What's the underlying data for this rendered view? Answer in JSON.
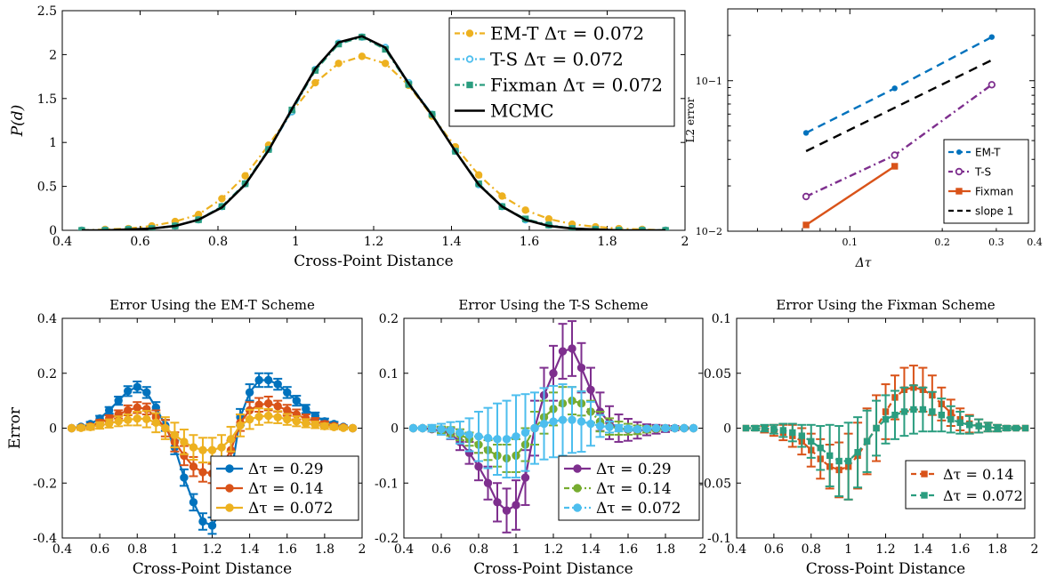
{
  "chart_data": [
    {
      "id": "pdf",
      "type": "line",
      "title": "",
      "xlabel": "Cross-Point Distance",
      "ylabel": "P(d)",
      "xlim": [
        0.4,
        2
      ],
      "ylim": [
        0,
        2.5
      ],
      "xticks": [
        "0.4",
        "0.6",
        "0.8",
        "1",
        "1.2",
        "1.4",
        "1.6",
        "1.8",
        "2"
      ],
      "yticks": [
        "0",
        "0.5",
        "1",
        "1.5",
        "2",
        "2.5"
      ],
      "legend_position": "top-right",
      "x": [
        0.45,
        0.51,
        0.57,
        0.63,
        0.69,
        0.75,
        0.81,
        0.87,
        0.93,
        0.99,
        1.05,
        1.11,
        1.17,
        1.23,
        1.29,
        1.35,
        1.41,
        1.47,
        1.53,
        1.59,
        1.65,
        1.71,
        1.77,
        1.83,
        1.89,
        1.95
      ],
      "series": [
        {
          "name": "EM-T Δτ = 0.072",
          "color": "#EDB120",
          "marker": "circle",
          "dash": "8,4,2,4",
          "values": [
            0.0,
            0.01,
            0.02,
            0.05,
            0.1,
            0.18,
            0.36,
            0.62,
            0.97,
            1.35,
            1.68,
            1.9,
            1.98,
            1.9,
            1.65,
            1.3,
            0.95,
            0.63,
            0.39,
            0.23,
            0.13,
            0.07,
            0.04,
            0.02,
            0.01,
            0.0
          ]
        },
        {
          "name": "T-S Δτ = 0.072",
          "color": "#4DBEEE",
          "marker": "circle-open",
          "dash": "8,4,2,4",
          "values": [
            0.0,
            0.0,
            0.01,
            0.02,
            0.05,
            0.12,
            0.27,
            0.53,
            0.92,
            1.35,
            1.83,
            2.13,
            2.2,
            2.08,
            1.68,
            1.32,
            0.9,
            0.52,
            0.27,
            0.12,
            0.06,
            0.02,
            0.01,
            0.0,
            0.0,
            0.0
          ]
        },
        {
          "name": "Fixman Δτ = 0.072",
          "color": "#2A9D7F",
          "marker": "square",
          "dash": "8,4,2,4",
          "values": [
            0.0,
            0.0,
            0.01,
            0.02,
            0.05,
            0.12,
            0.27,
            0.53,
            0.92,
            1.37,
            1.82,
            2.12,
            2.2,
            2.06,
            1.66,
            1.32,
            0.9,
            0.53,
            0.27,
            0.13,
            0.06,
            0.02,
            0.01,
            0.0,
            0.0,
            0.0
          ]
        },
        {
          "name": "MCMC",
          "color": "#000000",
          "marker": "none",
          "dash": "none",
          "values": [
            0.0,
            0.0,
            0.01,
            0.02,
            0.05,
            0.12,
            0.26,
            0.52,
            0.91,
            1.38,
            1.84,
            2.14,
            2.21,
            2.08,
            1.67,
            1.31,
            0.9,
            0.52,
            0.27,
            0.12,
            0.05,
            0.02,
            0.01,
            0.0,
            0.0,
            0.0
          ]
        }
      ]
    },
    {
      "id": "conv",
      "type": "line",
      "title": "",
      "xlabel": "Δτ",
      "ylabel": "L2 error",
      "scale": "log-log",
      "xlim": [
        0.04,
        0.4
      ],
      "ylim": [
        0.01,
        0.3
      ],
      "xticks": [
        "0.1",
        "0.2",
        "0.3",
        "0.4"
      ],
      "yticks": [
        "10−2",
        "10−1"
      ],
      "legend_position": "bottom-right",
      "series": [
        {
          "name": "EM-T",
          "color": "#0072BD",
          "marker": "dot",
          "dash": "9,6",
          "x": [
            0.072,
            0.14,
            0.29
          ],
          "values": [
            0.045,
            0.089,
            0.195
          ]
        },
        {
          "name": "T-S",
          "color": "#7E2F8E",
          "marker": "circle-open",
          "dash": "8,4,2,4",
          "x": [
            0.072,
            0.14,
            0.29
          ],
          "values": [
            0.017,
            0.032,
            0.094
          ]
        },
        {
          "name": "Fixman",
          "color": "#D95319",
          "marker": "square",
          "dash": "none",
          "x": [
            0.072,
            0.14
          ],
          "values": [
            0.011,
            0.027
          ]
        },
        {
          "name": "slope 1",
          "color": "#000000",
          "marker": "none",
          "dash": "10,7",
          "x": [
            0.072,
            0.29
          ],
          "values": [
            0.034,
            0.137
          ]
        }
      ]
    },
    {
      "id": "emt",
      "type": "line",
      "title": "Error Using the EM-T Scheme",
      "xlabel": "Cross-Point Distance",
      "ylabel": "Error",
      "xlim": [
        0.4,
        2
      ],
      "ylim": [
        -0.4,
        0.4
      ],
      "xticks": [
        "0.4",
        "0.6",
        "0.8",
        "1",
        "1.2",
        "1.4",
        "1.6",
        "1.8",
        "2"
      ],
      "yticks": [
        "-0.4",
        "-0.2",
        "0",
        "0.2",
        "0.4"
      ],
      "legend_position": "bottom-right",
      "x": [
        0.45,
        0.5,
        0.55,
        0.6,
        0.65,
        0.7,
        0.75,
        0.8,
        0.85,
        0.9,
        0.95,
        1.0,
        1.05,
        1.1,
        1.15,
        1.2,
        1.25,
        1.3,
        1.35,
        1.4,
        1.45,
        1.5,
        1.55,
        1.6,
        1.65,
        1.7,
        1.75,
        1.8,
        1.85,
        1.9,
        1.95
      ],
      "series": [
        {
          "name": "Δτ = 0.29",
          "color": "#0072BD",
          "marker": "dot",
          "dash": "none",
          "values": [
            0.0,
            0.005,
            0.015,
            0.035,
            0.065,
            0.1,
            0.135,
            0.15,
            0.13,
            0.075,
            0.01,
            -0.07,
            -0.18,
            -0.27,
            -0.34,
            -0.355,
            -0.3,
            -0.17,
            0.04,
            0.13,
            0.175,
            0.175,
            0.16,
            0.13,
            0.1,
            0.07,
            0.045,
            0.025,
            0.015,
            0.005,
            0.0
          ],
          "err": [
            0,
            0.005,
            0.008,
            0.01,
            0.012,
            0.015,
            0.018,
            0.02,
            0.02,
            0.02,
            0.02,
            0.025,
            0.03,
            0.03,
            0.03,
            0.03,
            0.03,
            0.03,
            0.03,
            0.03,
            0.025,
            0.025,
            0.02,
            0.02,
            0.018,
            0.015,
            0.012,
            0.01,
            0.008,
            0.005,
            0
          ]
        },
        {
          "name": "Δτ = 0.14",
          "color": "#D95319",
          "marker": "dot",
          "dash": "none",
          "values": [
            0.0,
            0.002,
            0.007,
            0.02,
            0.035,
            0.05,
            0.065,
            0.075,
            0.07,
            0.04,
            0.0,
            -0.05,
            -0.1,
            -0.14,
            -0.16,
            -0.165,
            -0.14,
            -0.08,
            0.02,
            0.065,
            0.085,
            0.09,
            0.08,
            0.065,
            0.05,
            0.035,
            0.025,
            0.015,
            0.008,
            0.003,
            0.0
          ],
          "err": [
            0,
            0.005,
            0.008,
            0.01,
            0.012,
            0.015,
            0.018,
            0.02,
            0.02,
            0.025,
            0.03,
            0.035,
            0.035,
            0.035,
            0.035,
            0.035,
            0.035,
            0.035,
            0.03,
            0.03,
            0.025,
            0.025,
            0.02,
            0.02,
            0.018,
            0.015,
            0.012,
            0.01,
            0.008,
            0.005,
            0
          ]
        },
        {
          "name": "Δτ = 0.072",
          "color": "#EDB120",
          "marker": "dot",
          "dash": "none",
          "values": [
            0.0,
            0.001,
            0.004,
            0.01,
            0.017,
            0.025,
            0.03,
            0.035,
            0.033,
            0.02,
            0.0,
            -0.025,
            -0.05,
            -0.07,
            -0.08,
            -0.08,
            -0.07,
            -0.04,
            0.01,
            0.032,
            0.042,
            0.045,
            0.04,
            0.032,
            0.025,
            0.018,
            0.012,
            0.007,
            0.004,
            0.001,
            0.0
          ],
          "err": [
            0,
            0.008,
            0.01,
            0.012,
            0.015,
            0.018,
            0.02,
            0.025,
            0.03,
            0.035,
            0.04,
            0.045,
            0.045,
            0.045,
            0.045,
            0.045,
            0.045,
            0.045,
            0.04,
            0.035,
            0.03,
            0.025,
            0.022,
            0.02,
            0.018,
            0.015,
            0.012,
            0.01,
            0.008,
            0.006,
            0
          ]
        }
      ]
    },
    {
      "id": "ts",
      "type": "line",
      "title": "Error Using the T-S Scheme",
      "xlabel": "Cross-Point Distance",
      "ylabel": "",
      "xlim": [
        0.4,
        2
      ],
      "ylim": [
        -0.2,
        0.2
      ],
      "xticks": [
        "0.4",
        "0.6",
        "0.8",
        "1",
        "1.2",
        "1.4",
        "1.6",
        "1.8",
        "2"
      ],
      "yticks": [
        "-0.2",
        "-0.1",
        "0",
        "0.1",
        "0.2"
      ],
      "legend_position": "bottom-right",
      "x": [
        0.45,
        0.5,
        0.55,
        0.6,
        0.65,
        0.7,
        0.75,
        0.8,
        0.85,
        0.9,
        0.95,
        1.0,
        1.05,
        1.1,
        1.15,
        1.2,
        1.25,
        1.3,
        1.35,
        1.4,
        1.45,
        1.5,
        1.55,
        1.6,
        1.65,
        1.7,
        1.75,
        1.8,
        1.85,
        1.9,
        1.95
      ],
      "series": [
        {
          "name": "Δτ = 0.29",
          "color": "#7E2F8E",
          "marker": "dot",
          "dash": "none",
          "values": [
            0.0,
            0.0,
            -0.002,
            -0.005,
            -0.01,
            -0.025,
            -0.045,
            -0.07,
            -0.1,
            -0.135,
            -0.15,
            -0.14,
            -0.09,
            0.0,
            0.06,
            0.1,
            0.14,
            0.145,
            0.11,
            0.07,
            0.03,
            0.01,
            0.0,
            -0.003,
            -0.004,
            -0.003,
            -0.002,
            -0.001,
            0.0,
            0.0,
            0.0
          ],
          "err": [
            0,
            0.002,
            0.004,
            0.006,
            0.01,
            0.015,
            0.02,
            0.025,
            0.03,
            0.035,
            0.04,
            0.045,
            0.05,
            0.05,
            0.05,
            0.05,
            0.05,
            0.05,
            0.045,
            0.04,
            0.035,
            0.03,
            0.025,
            0.02,
            0.015,
            0.01,
            0.008,
            0.006,
            0.004,
            0.002,
            0
          ]
        },
        {
          "name": "Δτ = 0.14",
          "color": "#77AC30",
          "marker": "dot",
          "dash": "8,4,2,4",
          "values": [
            0.0,
            0.0,
            -0.001,
            -0.003,
            -0.006,
            -0.012,
            -0.02,
            -0.03,
            -0.04,
            -0.05,
            -0.055,
            -0.05,
            -0.03,
            0.0,
            0.02,
            0.035,
            0.045,
            0.05,
            0.045,
            0.03,
            0.012,
            0.003,
            0.0,
            -0.002,
            -0.003,
            -0.002,
            -0.001,
            0.0,
            0.0,
            0.0,
            0.0
          ],
          "err": [
            0,
            0.002,
            0.004,
            0.006,
            0.008,
            0.01,
            0.012,
            0.015,
            0.018,
            0.02,
            0.025,
            0.03,
            0.03,
            0.03,
            0.03,
            0.03,
            0.03,
            0.025,
            0.022,
            0.02,
            0.018,
            0.015,
            0.012,
            0.01,
            0.008,
            0.006,
            0.004,
            0.003,
            0.002,
            0.001,
            0
          ]
        },
        {
          "name": "Δτ = 0.072",
          "color": "#4DBEEE",
          "marker": "dot",
          "dash": "8,4,2,4",
          "values": [
            0.0,
            0.0,
            0.0,
            -0.002,
            -0.004,
            -0.008,
            -0.012,
            -0.015,
            -0.018,
            -0.02,
            -0.02,
            -0.015,
            -0.008,
            0.0,
            0.008,
            0.012,
            0.015,
            0.015,
            0.012,
            0.008,
            0.004,
            0.002,
            0.0,
            -0.001,
            -0.002,
            -0.001,
            0.0,
            0.0,
            0.0,
            0.0,
            0.0
          ],
          "err": [
            0,
            0.003,
            0.006,
            0.01,
            0.015,
            0.02,
            0.03,
            0.045,
            0.055,
            0.065,
            0.07,
            0.075,
            0.07,
            0.065,
            0.065,
            0.065,
            0.065,
            0.06,
            0.055,
            0.04,
            0.02,
            0.01,
            0.006,
            0.004,
            0.003,
            0.002,
            0.001,
            0.001,
            0,
            0,
            0
          ]
        }
      ]
    },
    {
      "id": "fix",
      "type": "line",
      "title": "Error Using the Fixman Scheme",
      "xlabel": "Cross-Point Distance",
      "ylabel": "",
      "xlim": [
        0.4,
        2
      ],
      "ylim": [
        -0.1,
        0.1
      ],
      "xticks": [
        "0.4",
        "0.6",
        "0.8",
        "1",
        "1.2",
        "1.4",
        "1.6",
        "1.8",
        "2"
      ],
      "yticks": [
        "-0.1",
        "-0.05",
        "0",
        "0.05",
        "0.1"
      ],
      "legend_position": "bottom-right",
      "x": [
        0.45,
        0.5,
        0.55,
        0.6,
        0.65,
        0.7,
        0.75,
        0.8,
        0.85,
        0.9,
        0.95,
        1.0,
        1.05,
        1.1,
        1.15,
        1.2,
        1.25,
        1.3,
        1.35,
        1.4,
        1.45,
        1.5,
        1.55,
        1.6,
        1.65,
        1.7,
        1.75,
        1.8,
        1.85,
        1.9,
        1.95
      ],
      "series": [
        {
          "name": "Δτ = 0.14",
          "color": "#D95319",
          "marker": "square",
          "dash": "6,4",
          "values": [
            0.0,
            0.0,
            -0.001,
            -0.002,
            -0.004,
            -0.007,
            -0.012,
            -0.02,
            -0.028,
            -0.035,
            -0.038,
            -0.035,
            -0.025,
            -0.012,
            0.0,
            0.015,
            0.028,
            0.035,
            0.037,
            0.035,
            0.03,
            0.022,
            0.014,
            0.008,
            0.004,
            0.002,
            0.001,
            0.0,
            0.0,
            0.0,
            0.0
          ],
          "err": [
            0,
            0.002,
            0.003,
            0.005,
            0.007,
            0.01,
            0.012,
            0.015,
            0.018,
            0.02,
            0.025,
            0.03,
            0.03,
            0.03,
            0.03,
            0.025,
            0.02,
            0.02,
            0.02,
            0.02,
            0.018,
            0.015,
            0.012,
            0.01,
            0.008,
            0.006,
            0.004,
            0.003,
            0.002,
            0.001,
            0
          ]
        },
        {
          "name": "Δτ = 0.072",
          "color": "#2A9D7F",
          "marker": "square",
          "dash": "6,4",
          "values": [
            0.0,
            0.0,
            0.0,
            -0.001,
            -0.002,
            -0.004,
            -0.007,
            -0.012,
            -0.018,
            -0.025,
            -0.03,
            -0.03,
            -0.022,
            -0.012,
            0.0,
            0.008,
            0.012,
            0.015,
            0.017,
            0.017,
            0.015,
            0.012,
            0.008,
            0.005,
            0.003,
            0.002,
            0.001,
            0.0,
            0.0,
            0.0,
            0.0
          ],
          "err": [
            0,
            0.002,
            0.003,
            0.004,
            0.006,
            0.008,
            0.01,
            0.015,
            0.02,
            0.028,
            0.032,
            0.035,
            0.032,
            0.028,
            0.025,
            0.022,
            0.022,
            0.022,
            0.022,
            0.02,
            0.018,
            0.015,
            0.012,
            0.01,
            0.008,
            0.006,
            0.004,
            0.003,
            0.002,
            0.001,
            0
          ]
        }
      ]
    }
  ]
}
